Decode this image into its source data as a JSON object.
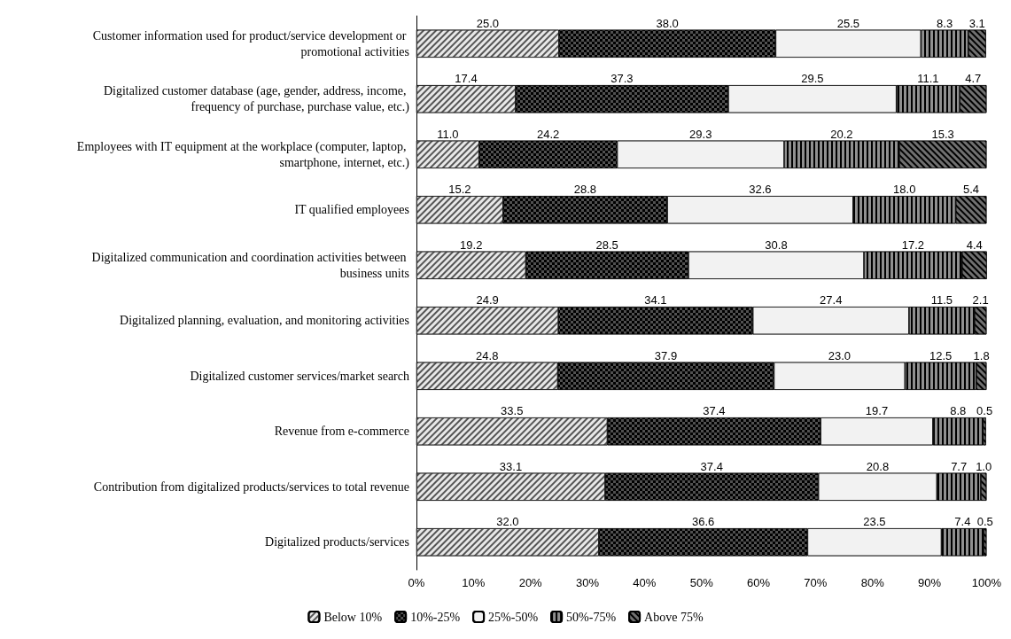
{
  "chart_data": {
    "type": "bar",
    "orientation": "horizontal",
    "stacked": true,
    "legend": "bottom",
    "grid": false,
    "categories": [
      "Customer information used for product/service development or promotional activities",
      "Digitalized customer database (age, gender, address, income, frequency of purchase, purchase value, etc.)",
      "Employees with IT equipment at the workplace (computer, laptop, smartphone, internet, etc.)",
      "IT qualified employees",
      "Digitalized communication and coordination activities between business units",
      "Digitalized planning, evaluation, and monitoring activities",
      "Digitalized customer services/market search",
      "Revenue from e-commerce",
      "Contribution from digitalized products/services to total revenue",
      "Digitalized products/services"
    ],
    "xlim": [
      0,
      100
    ],
    "xticks": [
      {
        "value": 0,
        "label": "0%"
      },
      {
        "value": 10,
        "label": "10%"
      },
      {
        "value": 20,
        "label": "20%"
      },
      {
        "value": 30,
        "label": "30%"
      },
      {
        "value": 40,
        "label": "40%"
      },
      {
        "value": 50,
        "label": "50%"
      },
      {
        "value": 60,
        "label": "60%"
      },
      {
        "value": 70,
        "label": "70%"
      },
      {
        "value": 80,
        "label": "80%"
      },
      {
        "value": 90,
        "label": "90%"
      },
      {
        "value": 100,
        "label": "100%"
      }
    ],
    "series": [
      {
        "name": "Below 10%",
        "color": "#e8e8e8",
        "values": [
          25.0,
          17.4,
          11.0,
          15.2,
          19.2,
          24.9,
          24.8,
          33.5,
          33.1,
          32.0
        ],
        "value_labels": [
          "25.0",
          "17.4",
          "11.0",
          "15.2",
          "19.2",
          "24.9",
          "24.8",
          "33.5",
          "33.1",
          "32.0"
        ]
      },
      {
        "name": "10%-25%",
        "color": "#505050",
        "values": [
          38.0,
          37.3,
          24.2,
          28.8,
          28.5,
          34.1,
          37.9,
          37.4,
          37.4,
          36.6
        ],
        "value_labels": [
          "38.0",
          "37.3",
          "24.2",
          "28.8",
          "28.5",
          "34.1",
          "37.9",
          "37.4",
          "37.4",
          "36.6"
        ]
      },
      {
        "name": "25%-50%",
        "color": "#f2f2f2",
        "values": [
          25.5,
          29.5,
          29.3,
          32.6,
          30.8,
          27.4,
          23.0,
          19.7,
          20.8,
          23.5
        ],
        "value_labels": [
          "25.5",
          "29.5",
          "29.3",
          "32.6",
          "30.8",
          "27.4",
          "23.0",
          "19.7",
          "20.8",
          "23.5"
        ]
      },
      {
        "name": "50%-75%",
        "color": "#909090",
        "values": [
          8.3,
          11.1,
          20.2,
          18.0,
          17.2,
          11.5,
          12.5,
          8.8,
          7.7,
          7.4
        ],
        "value_labels": [
          "8.3",
          "11.1",
          "20.2",
          "18.0",
          "17.2",
          "11.5",
          "12.5",
          "8.8",
          "7.7",
          "7.4"
        ]
      },
      {
        "name": "Above 75%",
        "color": "#707070",
        "values": [
          3.1,
          4.7,
          15.3,
          5.4,
          4.4,
          2.1,
          1.8,
          0.5,
          1.0,
          0.5
        ],
        "value_labels": [
          "3.1",
          "4.7",
          "15.3",
          "5.4",
          "4.4",
          "2.1",
          "1.8",
          "0.5",
          "1.0",
          "0.5"
        ]
      }
    ]
  }
}
